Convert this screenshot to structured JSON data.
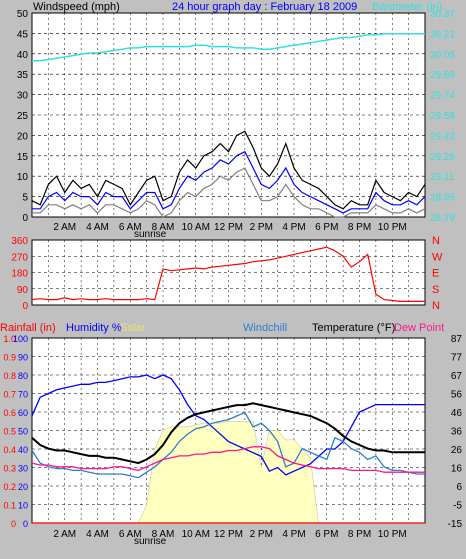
{
  "colors": {
    "background": "#c0c0c0",
    "plot_bg": "#ffffff",
    "grid": "#000000",
    "wind_speed": "#000000",
    "wind_avg": "#0000ff",
    "wind_low": "#808080",
    "barometer": "#33e0e0",
    "wind_dir": "#ff0000",
    "rainfall": "#ff0000",
    "humidity": "#0000ff",
    "solar": "#ffffc0",
    "windchill": "#2a7fd0",
    "temperature": "#000000",
    "dew_point": "#ff1493",
    "title": "#0000ff"
  },
  "chart_data": [
    {
      "type": "line",
      "panel": "wind",
      "title": "24 hour graph day : February 18 2009",
      "ylabel": "Windspeed (mph)",
      "ylabel_right": "Barometer (in)",
      "ylim": [
        0,
        50
      ],
      "y_ticks": [
        "0",
        "5",
        "10",
        "15",
        "20",
        "25",
        "30",
        "35",
        "40",
        "45",
        "50"
      ],
      "y2lim": [
        28.79,
        30.37
      ],
      "y2_ticks": [
        "28.79",
        "28.95",
        "29.11",
        "29.26",
        "29.42",
        "29.58",
        "29.74",
        "29.89",
        "30.05",
        "30.21",
        "30.37"
      ],
      "x_ticks": [
        "2 AM",
        "4 AM",
        "6 AM",
        "8 AM",
        "10 AM",
        "12 PM",
        "2 PM",
        "4 PM",
        "6 PM",
        "8 PM",
        "10 PM"
      ],
      "x_annotation": "sunrise",
      "x": [
        0,
        0.5,
        1,
        1.5,
        2,
        2.5,
        3,
        3.5,
        4,
        4.5,
        5,
        5.5,
        6,
        6.5,
        7,
        7.5,
        8,
        8.5,
        9,
        9.5,
        10,
        10.5,
        11,
        11.5,
        12,
        12.5,
        13,
        13.5,
        14,
        14.5,
        15,
        15.5,
        16,
        16.5,
        17,
        17.5,
        18,
        18.5,
        19,
        19.5,
        20,
        20.5,
        21,
        21.5,
        22,
        22.5,
        23,
        23.5,
        24
      ],
      "series": [
        {
          "name": "gust",
          "values": [
            4,
            3,
            8,
            10,
            6,
            9,
            7,
            8,
            5,
            9,
            8,
            7,
            3,
            6,
            9,
            10,
            4,
            5,
            11,
            14,
            12,
            15,
            16,
            18,
            16,
            20,
            21,
            17,
            12,
            10,
            13,
            18,
            12,
            9,
            8,
            7,
            5,
            3,
            2,
            4,
            3,
            3,
            9,
            6,
            5,
            4,
            6,
            5,
            8
          ]
        },
        {
          "name": "average",
          "values": [
            2,
            2,
            5,
            6,
            4,
            6,
            5,
            5,
            3,
            6,
            5,
            5,
            2,
            4,
            6,
            6,
            2,
            3,
            7,
            10,
            9,
            11,
            12,
            14,
            13,
            15,
            16,
            12,
            8,
            7,
            9,
            12,
            8,
            6,
            5,
            4,
            3,
            2,
            1,
            2,
            2,
            2,
            6,
            4,
            3,
            3,
            4,
            3,
            5
          ]
        },
        {
          "name": "low",
          "values": [
            1,
            1,
            3,
            3,
            2,
            3,
            2,
            3,
            1,
            3,
            3,
            2,
            1,
            2,
            4,
            3,
            0,
            1,
            4,
            6,
            5,
            7,
            8,
            10,
            9,
            11,
            12,
            8,
            4,
            4,
            5,
            8,
            5,
            3,
            2,
            2,
            1,
            0,
            0,
            1,
            1,
            1,
            3,
            2,
            1,
            1,
            2,
            1,
            2
          ]
        },
        {
          "name": "barometer",
          "axis": "right",
          "values": [
            30.0,
            30.0,
            30.01,
            30.02,
            30.03,
            30.04,
            30.05,
            30.06,
            30.06,
            30.07,
            30.08,
            30.09,
            30.1,
            30.1,
            30.11,
            30.11,
            30.11,
            30.11,
            30.11,
            30.11,
            30.12,
            30.12,
            30.11,
            30.11,
            30.11,
            30.1,
            30.1,
            30.1,
            30.09,
            30.09,
            30.1,
            30.11,
            30.12,
            30.13,
            30.14,
            30.15,
            30.16,
            30.17,
            30.18,
            30.18,
            30.19,
            30.2,
            30.2,
            30.21,
            30.21,
            30.21,
            30.21,
            30.21,
            30.21
          ]
        }
      ]
    },
    {
      "type": "line",
      "panel": "direction",
      "ylim": [
        0,
        360
      ],
      "y_ticks": [
        "0",
        "90",
        "180",
        "270",
        "360"
      ],
      "y2_ticks": [
        "N",
        "S",
        "E",
        "W",
        "N"
      ],
      "x": [
        0,
        0.5,
        1,
        1.5,
        2,
        2.5,
        3,
        3.5,
        4,
        4.5,
        5,
        5.5,
        6,
        6.5,
        7,
        7.5,
        8,
        8.5,
        9,
        9.5,
        10,
        10.5,
        11,
        11.5,
        12,
        12.5,
        13,
        13.5,
        14,
        14.5,
        15,
        15.5,
        16,
        16.5,
        17,
        17.5,
        18,
        18.5,
        19,
        19.5,
        20,
        20.5,
        21,
        21.5,
        22,
        22.5,
        23,
        23.5,
        24
      ],
      "series": [
        {
          "name": "direction",
          "values": [
            30,
            35,
            30,
            30,
            40,
            30,
            35,
            30,
            30,
            35,
            30,
            30,
            30,
            30,
            35,
            30,
            200,
            190,
            195,
            200,
            205,
            200,
            210,
            215,
            220,
            225,
            230,
            240,
            245,
            250,
            260,
            270,
            280,
            290,
            300,
            310,
            320,
            300,
            270,
            210,
            240,
            280,
            60,
            30,
            25,
            20,
            20,
            20,
            20
          ]
        }
      ]
    },
    {
      "type": "line",
      "panel": "climate",
      "left_labels": [
        "Rainfall (in)",
        "Humidity %",
        "Solar"
      ],
      "right_labels": [
        "Windchill",
        "Temperature (°F)",
        "Dew Point"
      ],
      "rain_ticks": [
        "0",
        "0.1",
        "0.2",
        "0.3",
        "0.4",
        "0.5",
        "0.6",
        "0.7",
        "0.8",
        "0.9",
        "1.0"
      ],
      "humidity_ticks": [
        "0",
        "10",
        "20",
        "30",
        "40",
        "50",
        "60",
        "70",
        "80",
        "90",
        "100"
      ],
      "y_ticks_right": [
        "-15",
        "-5",
        "6",
        "16",
        "26",
        "36",
        "46",
        "56",
        "67",
        "77",
        "87"
      ],
      "ylim_right": [
        -15,
        87
      ],
      "x_ticks": [
        "2 AM",
        "4 AM",
        "6 AM",
        "8 AM",
        "10 AM",
        "12 PM",
        "2 PM",
        "4 PM",
        "6 PM",
        "8 PM",
        "10 PM"
      ],
      "x_annotation": "sunrise",
      "x": [
        0,
        0.5,
        1,
        1.5,
        2,
        2.5,
        3,
        3.5,
        4,
        4.5,
        5,
        5.5,
        6,
        6.5,
        7,
        7.5,
        8,
        8.5,
        9,
        9.5,
        10,
        10.5,
        11,
        11.5,
        12,
        12.5,
        13,
        13.5,
        14,
        14.5,
        15,
        15.5,
        16,
        16.5,
        17,
        17.5,
        18,
        18.5,
        19,
        19.5,
        20,
        20.5,
        21,
        21.5,
        22,
        22.5,
        23,
        23.5,
        24
      ],
      "series": [
        {
          "name": "Humidity %",
          "axis": "humidity",
          "values": [
            58,
            68,
            70,
            72,
            73,
            74,
            75,
            75,
            76,
            76,
            77,
            78,
            79,
            79,
            80,
            78,
            80,
            78,
            72,
            64,
            58,
            56,
            52,
            48,
            44,
            42,
            40,
            38,
            36,
            28,
            30,
            26,
            28,
            30,
            32,
            36,
            40,
            40,
            44,
            52,
            60,
            62,
            64,
            64,
            64,
            64,
            64,
            64,
            64
          ]
        },
        {
          "name": "Solar",
          "axis": "humidity",
          "values": [
            0,
            0,
            0,
            0,
            0,
            0,
            0,
            0,
            0,
            0,
            0,
            0,
            0,
            0,
            10,
            40,
            50,
            52,
            52,
            52,
            53,
            54,
            54,
            54,
            55,
            55,
            55,
            55,
            30,
            50,
            50,
            45,
            45,
            40,
            35,
            0,
            0,
            0,
            0,
            0,
            0,
            0,
            0,
            0,
            0,
            0,
            0,
            0,
            0
          ]
        },
        {
          "name": "Temperature (°F)",
          "axis": "temp",
          "values": [
            32,
            28,
            26,
            25,
            25,
            24,
            23,
            22,
            22,
            21,
            21,
            20,
            19,
            18,
            20,
            23,
            28,
            35,
            40,
            43,
            45,
            46,
            47,
            48,
            49,
            50,
            50,
            51,
            50,
            49,
            48,
            47,
            46,
            45,
            44,
            42,
            40,
            37,
            33,
            30,
            28,
            26,
            25,
            25,
            24,
            24,
            24,
            24,
            24
          ]
        },
        {
          "name": "Windchill",
          "axis": "temp",
          "values": [
            25,
            18,
            16,
            15,
            15,
            14,
            14,
            13,
            12,
            12,
            12,
            12,
            11,
            10,
            13,
            16,
            20,
            24,
            30,
            34,
            37,
            38,
            40,
            41,
            42,
            44,
            46,
            38,
            40,
            36,
            30,
            16,
            18,
            26,
            24,
            22,
            20,
            32,
            30,
            26,
            24,
            20,
            22,
            16,
            14,
            14,
            13,
            12,
            12
          ]
        },
        {
          "name": "Dew Point",
          "axis": "temp",
          "values": [
            18,
            17,
            17,
            16,
            16,
            16,
            15,
            15,
            15,
            15,
            16,
            16,
            15,
            14,
            16,
            18,
            20,
            21,
            22,
            22,
            23,
            23,
            24,
            24,
            25,
            25,
            26,
            27,
            27,
            26,
            22,
            20,
            18,
            17,
            16,
            15,
            15,
            15,
            15,
            14,
            14,
            14,
            14,
            13,
            13,
            13,
            13,
            13,
            13
          ]
        },
        {
          "name": "Rainfall (in)",
          "axis": "rain",
          "values": [
            0,
            0,
            0,
            0,
            0,
            0,
            0,
            0,
            0,
            0,
            0,
            0,
            0,
            0,
            0,
            0,
            0,
            0,
            0,
            0,
            0,
            0,
            0,
            0,
            0,
            0,
            0,
            0,
            0,
            0,
            0,
            0,
            0,
            0,
            0,
            0,
            0,
            0,
            0,
            0,
            0,
            0,
            0,
            0,
            0,
            0,
            0,
            0,
            0
          ]
        }
      ]
    }
  ]
}
